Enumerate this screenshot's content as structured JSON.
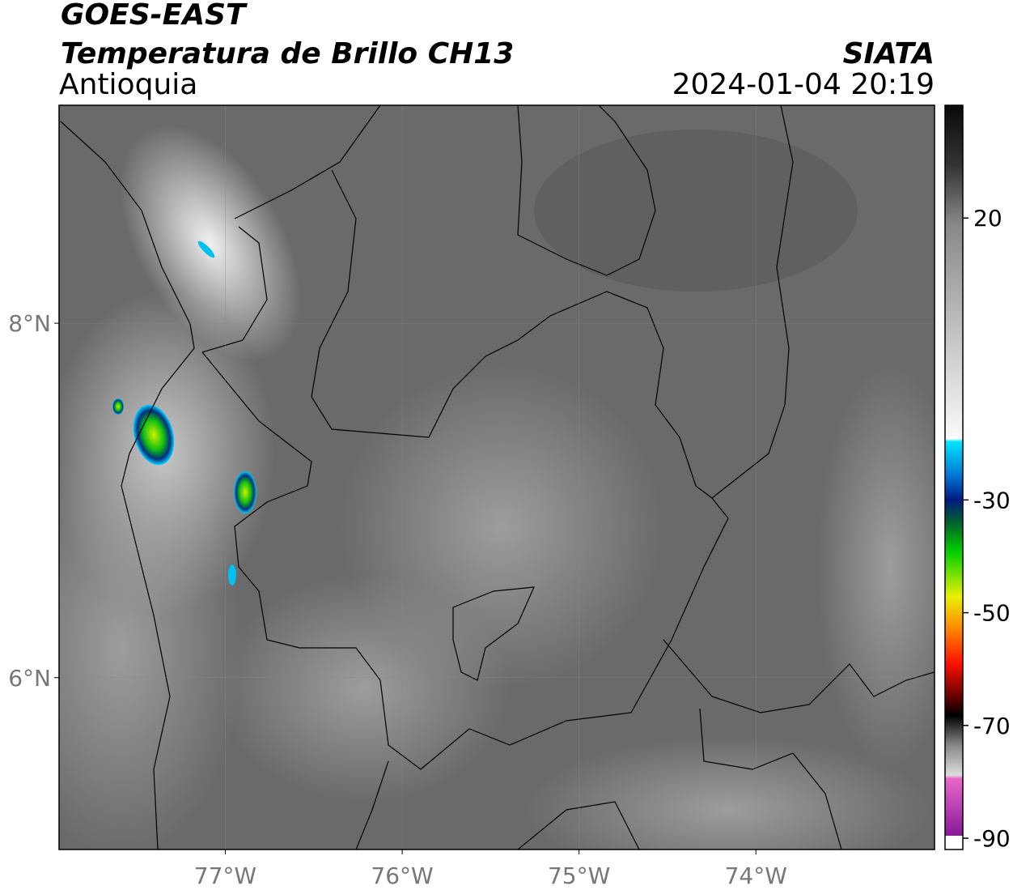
{
  "header": {
    "title": "GOES-EAST",
    "subtitle": "Temperatura de Brillo CH13",
    "region": "Antioquia",
    "source": "SIATA",
    "datetime": "2024-01-04 20:19"
  },
  "map": {
    "xlim": [
      -77.94,
      -72.99
    ],
    "ylim": [
      5.03,
      9.23
    ],
    "xticks": [
      {
        "value": -77,
        "label": "77°W"
      },
      {
        "value": -76,
        "label": "76°W"
      },
      {
        "value": -75,
        "label": "75°W"
      },
      {
        "value": -74,
        "label": "74°W"
      }
    ],
    "yticks": [
      {
        "value": 8,
        "label": "8°N"
      },
      {
        "value": 6,
        "label": "6°N"
      }
    ],
    "grid": true
  },
  "colorbar": {
    "lim": [
      -92,
      40
    ],
    "ticks": [
      20,
      -30,
      -50,
      -70,
      -90
    ]
  }
}
